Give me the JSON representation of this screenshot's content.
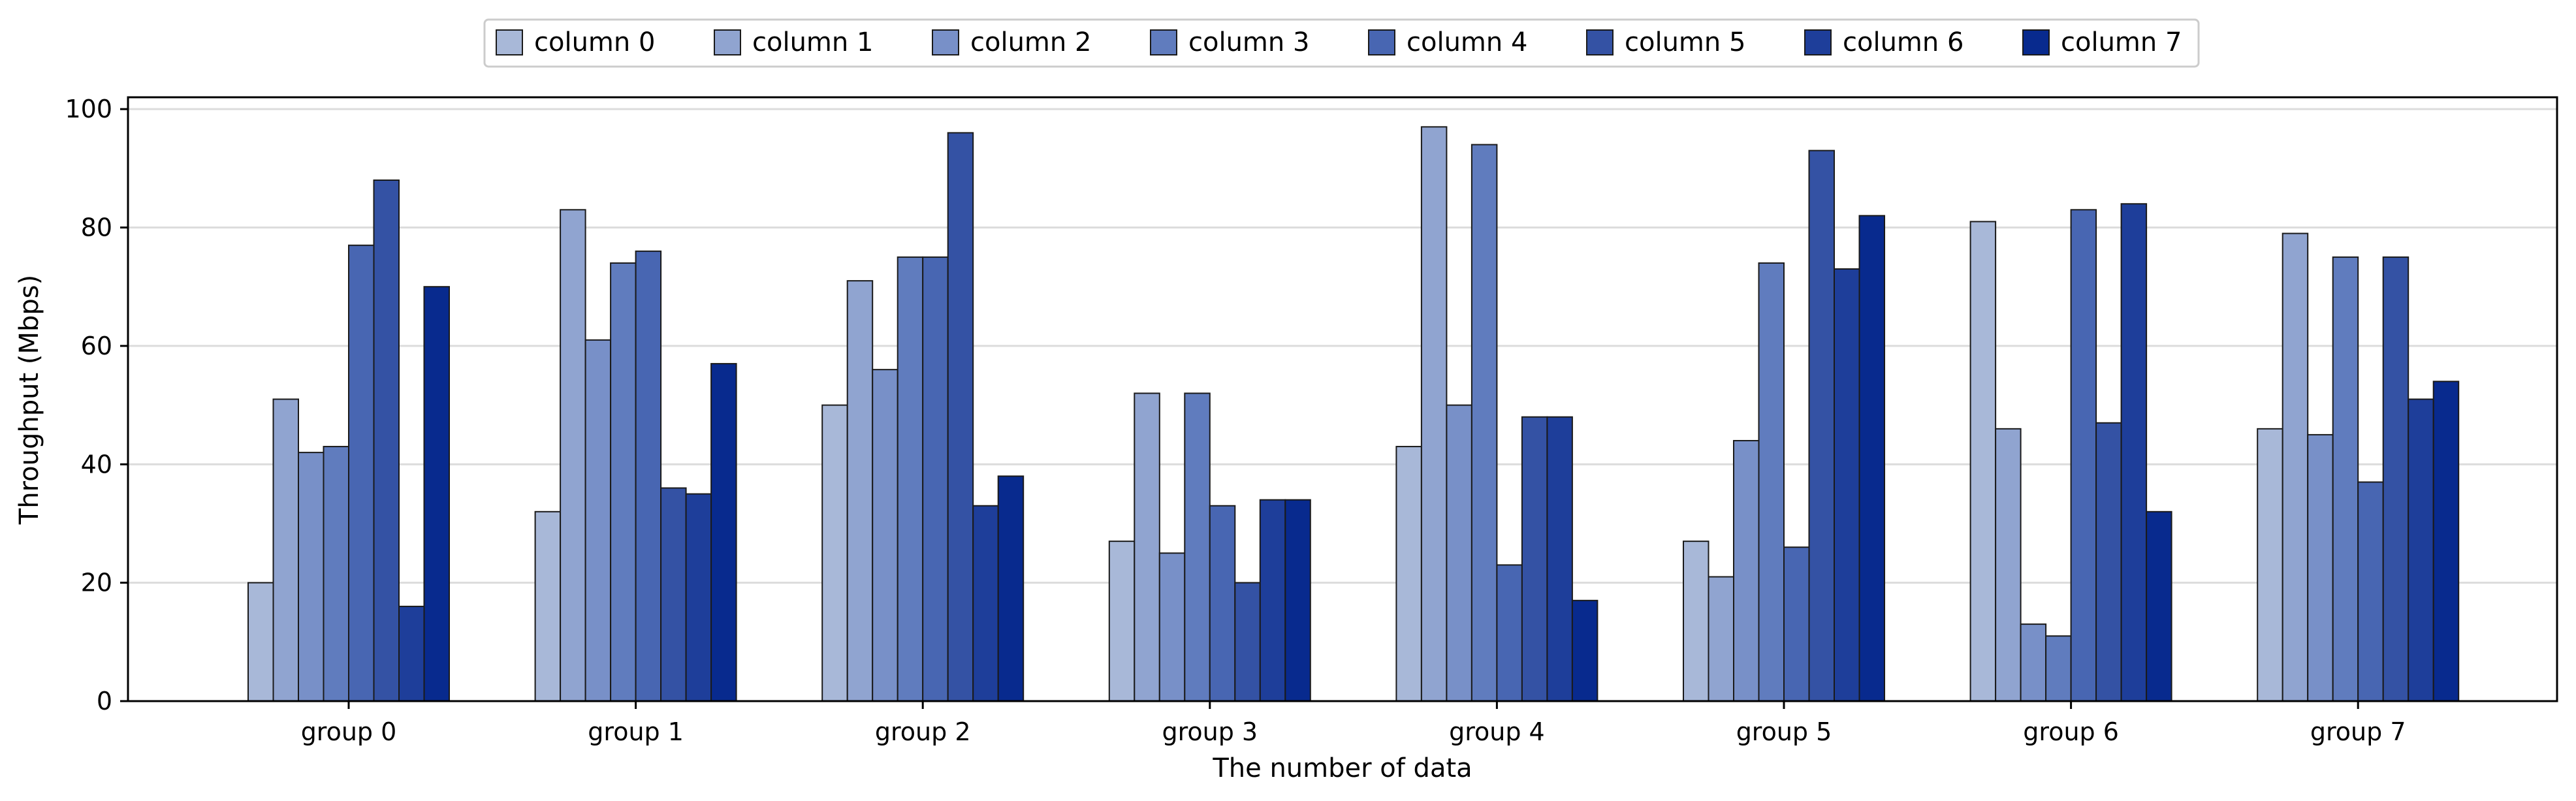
{
  "chart_data": {
    "type": "bar",
    "title": "",
    "xlabel": "The number of data",
    "ylabel": "Throughput (Mbps)",
    "ylim": [
      0,
      102
    ],
    "yticks": [
      0,
      20,
      40,
      60,
      80,
      100
    ],
    "grid": "horizontal",
    "legend_position": "top-center",
    "categories": [
      "group 0",
      "group 1",
      "group 2",
      "group 3",
      "group 4",
      "group 5",
      "group 6",
      "group 7"
    ],
    "series": [
      {
        "name": "column 0",
        "color": "#a8b8d8",
        "values": [
          20,
          32,
          50,
          27,
          43,
          27,
          81,
          46
        ]
      },
      {
        "name": "column 1",
        "color": "#90a4d0",
        "values": [
          51,
          83,
          71,
          52,
          97,
          21,
          46,
          79
        ]
      },
      {
        "name": "column 2",
        "color": "#7890c8",
        "values": [
          42,
          61,
          56,
          25,
          50,
          44,
          13,
          45
        ]
      },
      {
        "name": "column 3",
        "color": "#607cbe",
        "values": [
          43,
          74,
          75,
          52,
          94,
          74,
          11,
          75
        ]
      },
      {
        "name": "column 4",
        "color": "#4866b2",
        "values": [
          77,
          76,
          75,
          33,
          23,
          26,
          83,
          37
        ]
      },
      {
        "name": "column 5",
        "color": "#3452a4",
        "values": [
          88,
          36,
          96,
          20,
          48,
          93,
          47,
          75
        ]
      },
      {
        "name": "column 6",
        "color": "#1e3e9a",
        "values": [
          16,
          35,
          33,
          34,
          48,
          73,
          84,
          51
        ]
      },
      {
        "name": "column 7",
        "color": "#082a8e",
        "values": [
          70,
          57,
          38,
          34,
          17,
          82,
          32,
          54
        ]
      }
    ]
  }
}
